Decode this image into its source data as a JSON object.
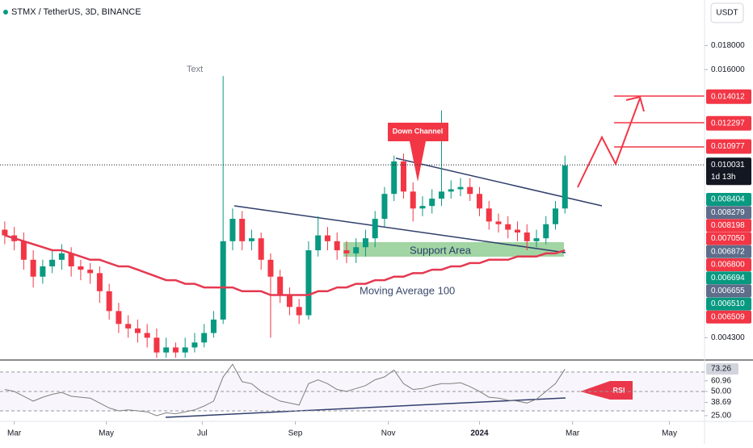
{
  "chart_data": {
    "type": "candlestick",
    "title": "STMX / TetherUS, 3D, BINANCE",
    "currency": "USDT",
    "log_scale": true,
    "up_color": "#089981",
    "down_color": "#f23645",
    "xlim": [
      -0.5,
      73.7
    ],
    "xticks": [
      {
        "value": 1,
        "label": "Mar"
      },
      {
        "value": 10.7,
        "label": "May"
      },
      {
        "value": 20.8,
        "label": "Jul"
      },
      {
        "value": 30.6,
        "label": "Sep"
      },
      {
        "value": 40.4,
        "label": "Nov"
      },
      {
        "value": 50,
        "label": "2024"
      },
      {
        "value": 59.8,
        "label": "Mar"
      },
      {
        "value": 70,
        "label": "May"
      }
    ],
    "ylim": [
      0.00387,
      0.0225
    ],
    "yticks": [
      {
        "value": 0.018,
        "label": "0.018000"
      },
      {
        "value": 0.016,
        "label": "0.016000"
      },
      {
        "value": 0.0043,
        "label": "0.004300"
      }
    ],
    "price_marks": [
      {
        "value": 0.014012,
        "label": "0.014012",
        "color": "#f23645"
      },
      {
        "value": 0.012297,
        "label": "0.012297",
        "color": "#f23645"
      },
      {
        "value": 0.010977,
        "label": "0.010977",
        "color": "#f23645"
      },
      {
        "value": 0.010031,
        "label": "0.010031",
        "color": "#131722"
      }
    ],
    "countdown": "1d 13h",
    "stacked_labels": [
      {
        "value": 0.008404,
        "label": "0.008404",
        "color": "#089981"
      },
      {
        "value": 0.008279,
        "label": "0.008279",
        "color": "#5d6d8a"
      },
      {
        "value": 0.008198,
        "label": "0.008198",
        "color": "#f23645"
      },
      {
        "value": 0.00705,
        "label": "0.007050",
        "color": "#f23645"
      },
      {
        "value": 0.006872,
        "label": "0.006872",
        "color": "#5d6d8a"
      },
      {
        "value": 0.0068,
        "label": "0.006800",
        "color": "#f23645"
      },
      {
        "value": 0.006694,
        "label": "0.006694",
        "color": "#089981"
      },
      {
        "value": 0.006655,
        "label": "0.006655",
        "color": "#5d6d8a"
      },
      {
        "value": 0.00651,
        "label": "0.006510",
        "color": "#089981"
      },
      {
        "value": 0.006509,
        "label": "0.006509",
        "color": "#f23645"
      }
    ],
    "candles": [
      [
        0.0073,
        0.0076,
        0.0068,
        0.0071
      ],
      [
        0.0071,
        0.0074,
        0.0066,
        0.0069
      ],
      [
        0.0069,
        0.0072,
        0.006,
        0.0063
      ],
      [
        0.0063,
        0.0066,
        0.0055,
        0.0058
      ],
      [
        0.0058,
        0.0063,
        0.0056,
        0.0061
      ],
      [
        0.0061,
        0.0066,
        0.0059,
        0.0063
      ],
      [
        0.0063,
        0.0068,
        0.006,
        0.0065
      ],
      [
        0.0065,
        0.0067,
        0.0058,
        0.0061
      ],
      [
        0.0061,
        0.0063,
        0.0057,
        0.006
      ],
      [
        0.006,
        0.0062,
        0.0056,
        0.0059
      ],
      [
        0.0059,
        0.0061,
        0.0051,
        0.0054
      ],
      [
        0.0054,
        0.0056,
        0.0047,
        0.0049
      ],
      [
        0.0049,
        0.0051,
        0.0044,
        0.0046
      ],
      [
        0.0046,
        0.0048,
        0.0043,
        0.0045
      ],
      [
        0.0045,
        0.0047,
        0.0042,
        0.0044
      ],
      [
        0.0044,
        0.0046,
        0.0041,
        0.0043
      ],
      [
        0.0043,
        0.0045,
        0.0039,
        0.004
      ],
      [
        0.004,
        0.0043,
        0.0039,
        0.0041
      ],
      [
        0.0041,
        0.0042,
        0.0039,
        0.004
      ],
      [
        0.004,
        0.0043,
        0.0039,
        0.0041
      ],
      [
        0.0041,
        0.0044,
        0.004,
        0.0042
      ],
      [
        0.0042,
        0.0046,
        0.0041,
        0.0044
      ],
      [
        0.0044,
        0.0049,
        0.0043,
        0.0047
      ],
      [
        0.0047,
        0.0155,
        0.0046,
        0.0069
      ],
      [
        0.0069,
        0.0081,
        0.0066,
        0.0077
      ],
      [
        0.0077,
        0.008,
        0.0066,
        0.0069
      ],
      [
        0.0069,
        0.0073,
        0.0066,
        0.007
      ],
      [
        0.007,
        0.0072,
        0.006,
        0.0063
      ],
      [
        0.0063,
        0.0065,
        0.0043,
        0.0058
      ],
      [
        0.0058,
        0.006,
        0.0051,
        0.0053
      ],
      [
        0.0053,
        0.0055,
        0.0048,
        0.005
      ],
      [
        0.005,
        0.0052,
        0.0046,
        0.0048
      ],
      [
        0.0048,
        0.0069,
        0.0047,
        0.0066
      ],
      [
        0.0066,
        0.0078,
        0.0064,
        0.0071
      ],
      [
        0.0071,
        0.0074,
        0.0066,
        0.0069
      ],
      [
        0.0069,
        0.0072,
        0.0063,
        0.0066
      ],
      [
        0.0066,
        0.0069,
        0.0062,
        0.0065
      ],
      [
        0.0065,
        0.007,
        0.0062,
        0.0067
      ],
      [
        0.0067,
        0.0073,
        0.0064,
        0.007
      ],
      [
        0.007,
        0.008,
        0.0067,
        0.0077
      ],
      [
        0.0077,
        0.009,
        0.0074,
        0.0087
      ],
      [
        0.0087,
        0.0105,
        0.0084,
        0.0102
      ],
      [
        0.0102,
        0.0106,
        0.0085,
        0.0088
      ],
      [
        0.0088,
        0.0092,
        0.0076,
        0.0081
      ],
      [
        0.0081,
        0.0086,
        0.0078,
        0.0082
      ],
      [
        0.0082,
        0.0089,
        0.0079,
        0.0085
      ],
      [
        0.0085,
        0.0131,
        0.0082,
        0.0088
      ],
      [
        0.0088,
        0.0093,
        0.0085,
        0.0089
      ],
      [
        0.0089,
        0.0094,
        0.0086,
        0.009
      ],
      [
        0.009,
        0.0094,
        0.0084,
        0.0087
      ],
      [
        0.0087,
        0.009,
        0.0078,
        0.0081
      ],
      [
        0.0081,
        0.0084,
        0.0073,
        0.0076
      ],
      [
        0.0076,
        0.0079,
        0.0072,
        0.0075
      ],
      [
        0.0075,
        0.0078,
        0.007,
        0.0073
      ],
      [
        0.0073,
        0.0076,
        0.0069,
        0.0072
      ],
      [
        0.0072,
        0.0075,
        0.0066,
        0.0069
      ],
      [
        0.0069,
        0.0073,
        0.0067,
        0.007
      ],
      [
        0.007,
        0.0078,
        0.0068,
        0.0075
      ],
      [
        0.0075,
        0.0084,
        0.0073,
        0.0081
      ],
      [
        0.0081,
        0.0105,
        0.0079,
        0.01
      ]
    ],
    "ma": {
      "name": "Moving Average 100",
      "color": "#e53950",
      "values": [
        0.0071,
        0.007,
        0.0069,
        0.0068,
        0.0067,
        0.0066,
        0.0066,
        0.0065,
        0.0064,
        0.0063,
        0.0063,
        0.0062,
        0.0061,
        0.0061,
        0.006,
        0.0059,
        0.0058,
        0.0057,
        0.0057,
        0.0056,
        0.0056,
        0.0055,
        0.0055,
        0.0055,
        0.0055,
        0.0054,
        0.0054,
        0.0054,
        0.0053,
        0.0053,
        0.0053,
        0.0053,
        0.0053,
        0.0054,
        0.0054,
        0.0055,
        0.0055,
        0.0056,
        0.0056,
        0.0057,
        0.0057,
        0.0058,
        0.0058,
        0.0059,
        0.0059,
        0.006,
        0.006,
        0.0061,
        0.0061,
        0.0062,
        0.0062,
        0.0063,
        0.0063,
        0.0063,
        0.0064,
        0.0064,
        0.0064,
        0.0065,
        0.0065,
        0.0066
      ]
    },
    "rsi": {
      "name": "RSI",
      "color": "#7e7e7e",
      "ylim": [
        20.8,
        81.6
      ],
      "yticks": [
        {
          "value": 73.26,
          "label": "73.26"
        },
        {
          "value": 60.96,
          "label": "60.96"
        },
        {
          "value": 50,
          "label": "50.00"
        },
        {
          "value": 38.69,
          "label": "38.69"
        },
        {
          "value": 25,
          "label": "25.00"
        }
      ],
      "bands": [
        70,
        50,
        30
      ],
      "values": [
        52,
        50,
        45,
        40,
        44,
        47,
        49,
        45,
        44,
        43,
        38,
        33,
        30,
        31,
        30,
        29,
        25,
        28,
        27,
        29,
        31,
        35,
        40,
        65,
        78,
        60,
        58,
        50,
        45,
        40,
        38,
        36,
        58,
        62,
        58,
        52,
        50,
        53,
        56,
        62,
        65,
        72,
        58,
        52,
        53,
        56,
        58,
        58,
        59,
        55,
        50,
        44,
        43,
        41,
        40,
        38,
        42,
        50,
        58,
        73
      ]
    },
    "annotations": {
      "text": "Text",
      "down_channel": "Down Channel",
      "support": "Support Area",
      "rsi_label": "RSI"
    }
  }
}
